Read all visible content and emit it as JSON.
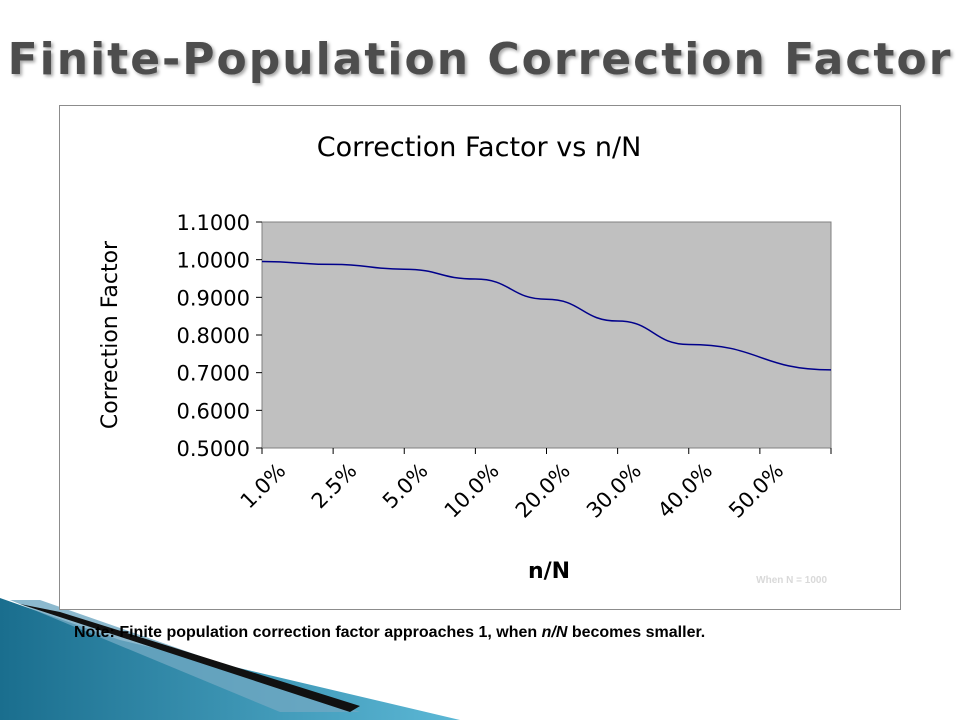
{
  "slide": {
    "title": "Finite-Population Correction Factor",
    "note_before": "Note: Finite population correction factor approaches 1, when ",
    "note_emph": "n/N",
    "note_after": " becomes smaller."
  },
  "chart_data": {
    "type": "line",
    "title": "Correction Factor vs n/N",
    "xlabel": "n/N",
    "ylabel": "Correction Factor",
    "categories": [
      "1.0%",
      "2.5%",
      "5.0%",
      "10.0%",
      "20.0%",
      "30.0%",
      "40.0%",
      "50.0%"
    ],
    "series": [
      {
        "values": [
          0.995,
          0.9874,
          0.9747,
          0.9487,
          0.8949,
          0.8371,
          0.7749,
          0.7075
        ]
      }
    ],
    "ylim": [
      0.5,
      1.1
    ],
    "yticks": [
      "0.5000",
      "0.6000",
      "0.7000",
      "0.8000",
      "0.9000",
      "1.0000",
      "1.1000"
    ],
    "annotation": "When N = 1000",
    "grid": false,
    "legend": "none",
    "colors": {
      "line": "#00008b",
      "plot_bg": "#c0c0c0",
      "annotation": "#d9d9d9"
    }
  }
}
